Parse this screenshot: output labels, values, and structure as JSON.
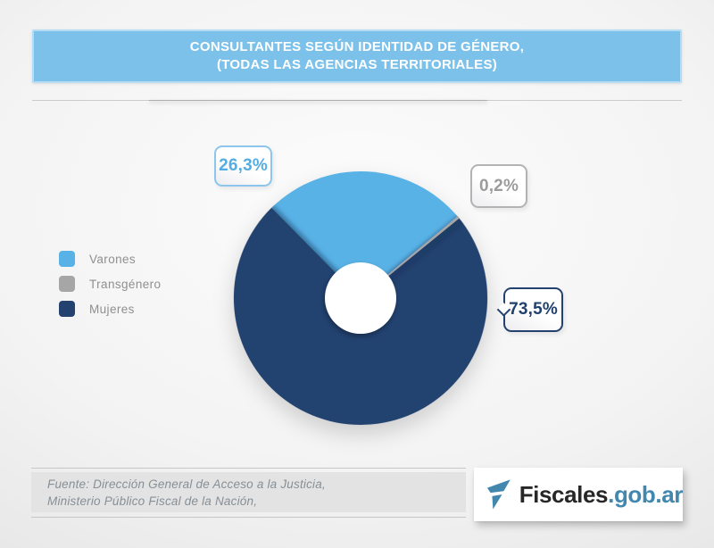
{
  "banner": {
    "title_line1": "CONSULTANTES SEGÚN IDENTIDAD DE GÉNERO,",
    "title_line2": "(TODAS LAS AGENCIAS TERRITORIALES)"
  },
  "chart_data": {
    "type": "pie",
    "donut": true,
    "title": "Consultantes según identidad de género (todas las agencias territoriales)",
    "unit": "%",
    "start_angle_deg": 134.6,
    "hole_ratio": 0.28,
    "legend_position": "left",
    "slices": [
      {
        "name": "Varones",
        "value": 26.3,
        "label": "26,3%",
        "color": "#58b2e6",
        "callout_border": "#8cc6ec",
        "callout_text": "#54ade2"
      },
      {
        "name": "Transgénero",
        "value": 0.2,
        "label": "0,2%",
        "color": "#a6a6a6",
        "callout_border": "#b3b3b3",
        "callout_text": "#9c9c9c"
      },
      {
        "name": "Mujeres",
        "value": 73.5,
        "label": "73,5%",
        "color": "#24426f",
        "callout_border": "#24426f",
        "callout_text": "#20406e"
      }
    ]
  },
  "footer": {
    "source_line1": "Fuente: Dirección General de Acceso a la Justicia,",
    "source_line2": "Ministerio Público Fiscal de la Nación,"
  },
  "logo": {
    "brand": "Fiscales",
    "domain": ".gob.ar"
  },
  "colors": {
    "banner_bg": "#7cc1ea",
    "banner_border": "#b5dcf5",
    "page_edge": "#d5d5d5",
    "legend_text": "#8f8f8f",
    "source_text": "#878f96",
    "logo_blue": "#4287ae",
    "logo_dark": "#272727"
  }
}
